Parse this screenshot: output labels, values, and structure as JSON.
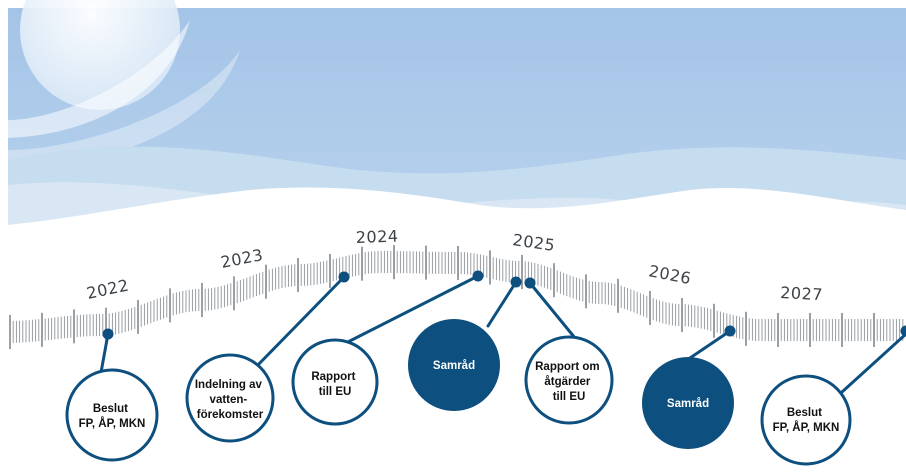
{
  "timeline": {
    "years": [
      {
        "id": "2022",
        "label": "2022"
      },
      {
        "id": "2023",
        "label": "2023"
      },
      {
        "id": "2024",
        "label": "2024"
      },
      {
        "id": "2025",
        "label": "2025"
      },
      {
        "id": "2026",
        "label": "2026"
      },
      {
        "id": "2027",
        "label": "2027"
      }
    ],
    "milestones": [
      {
        "id": "beslut-1",
        "lines": [
          "Beslut",
          "FP, ÅP, MKN"
        ],
        "filled": false
      },
      {
        "id": "indelning",
        "lines": [
          "Indelning av",
          "vatten-",
          "förekomster"
        ],
        "filled": false
      },
      {
        "id": "rapport-eu",
        "lines": [
          "Rapport",
          "till EU"
        ],
        "filled": false
      },
      {
        "id": "samrad-1",
        "lines": [
          "Samråd"
        ],
        "filled": true
      },
      {
        "id": "rapport-atgarder",
        "lines": [
          "Rapport om",
          "åtgärder",
          "till EU"
        ],
        "filled": false
      },
      {
        "id": "samrad-2",
        "lines": [
          "Samråd"
        ],
        "filled": true
      },
      {
        "id": "beslut-2",
        "lines": [
          "Beslut",
          "FP, ÅP, MKN"
        ],
        "filled": false
      }
    ]
  },
  "colors": {
    "sky": "#a9c8e8",
    "navy": "#0d4f7f",
    "tick": "#8d949b",
    "text": "#3e4349"
  }
}
